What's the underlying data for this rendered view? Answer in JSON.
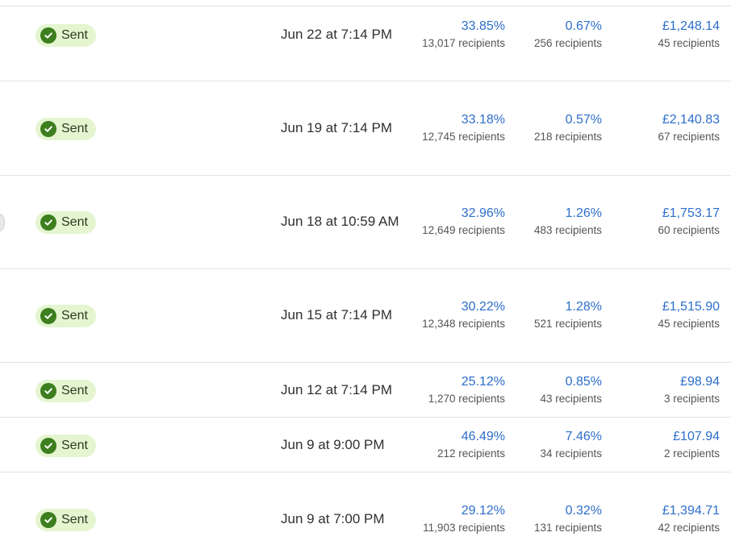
{
  "rows": [
    {
      "status": "Sent",
      "date": "Jun 22 at 7:14 PM",
      "open_rate": "33.85%",
      "open_recipients": "13,017 recipients",
      "click_rate": "0.67%",
      "click_recipients": "256 recipients",
      "revenue": "£1,248.14",
      "revenue_recipients": "45 recipients"
    },
    {
      "status": "Sent",
      "date": "Jun 19 at 7:14 PM",
      "open_rate": "33.18%",
      "open_recipients": "12,745 recipients",
      "click_rate": "0.57%",
      "click_recipients": "218 recipients",
      "revenue": "£2,140.83",
      "revenue_recipients": "67 recipients"
    },
    {
      "status": "Sent",
      "date": "Jun 18 at 10:59 AM",
      "open_rate": "32.96%",
      "open_recipients": "12,649 recipients",
      "click_rate": "1.26%",
      "click_recipients": "483 recipients",
      "revenue": "£1,753.17",
      "revenue_recipients": "60 recipients"
    },
    {
      "status": "Sent",
      "date": "Jun 15 at 7:14 PM",
      "open_rate": "30.22%",
      "open_recipients": "12,348 recipients",
      "click_rate": "1.28%",
      "click_recipients": "521 recipients",
      "revenue": "£1,515.90",
      "revenue_recipients": "45 recipients"
    },
    {
      "status": "Sent",
      "date": "Jun 12 at 7:14 PM",
      "open_rate": "25.12%",
      "open_recipients": "1,270 recipients",
      "click_rate": "0.85%",
      "click_recipients": "43 recipients",
      "revenue": "£98.94",
      "revenue_recipients": "3 recipients"
    },
    {
      "status": "Sent",
      "date": "Jun 9 at 9:00 PM",
      "open_rate": "46.49%",
      "open_recipients": "212 recipients",
      "click_rate": "7.46%",
      "click_recipients": "34 recipients",
      "revenue": "£107.94",
      "revenue_recipients": "2 recipients"
    },
    {
      "status": "Sent",
      "date": "Jun 9 at 7:00 PM",
      "open_rate": "29.12%",
      "open_recipients": "11,903 recipients",
      "click_rate": "0.32%",
      "click_recipients": "131 recipients",
      "revenue": "£1,394.71",
      "revenue_recipients": "42 recipients"
    }
  ],
  "colors": {
    "link_blue": "#2c6ecb",
    "sent_badge_bg": "#e4f5d0",
    "sent_check": "#3d7e1f"
  },
  "icons": {
    "status": "check-circle-icon"
  }
}
